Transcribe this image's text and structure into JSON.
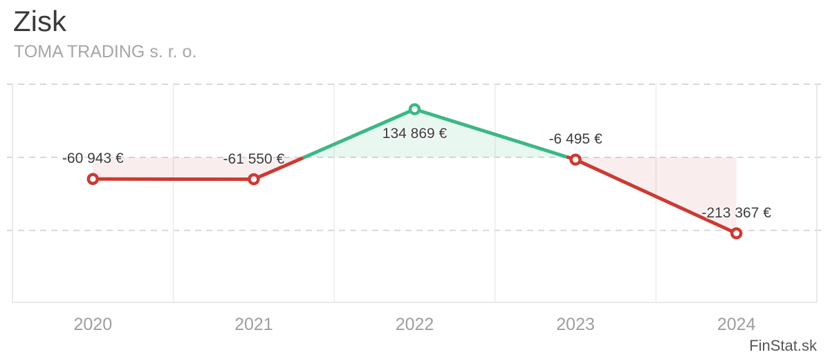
{
  "header": {
    "title": "Zisk",
    "subtitle": "TOMA TRADING s. r. o."
  },
  "footer": {
    "watermark": "FinStat.sk"
  },
  "chart_data": {
    "type": "line",
    "title": "Zisk",
    "subtitle": "TOMA TRADING s. r. o.",
    "categories": [
      "2020",
      "2021",
      "2022",
      "2023",
      "2024"
    ],
    "series": [
      {
        "name": "Zisk",
        "values": [
          -60943,
          -61550,
          134869,
          -6495,
          -213367
        ]
      }
    ],
    "point_labels": [
      "-60 943 €",
      "-61 550 €",
      "134 869 €",
      "-6 495 €",
      "-213 367 €"
    ],
    "label_positions": [
      "above",
      "above",
      "below",
      "above",
      "above"
    ],
    "xlabel": "",
    "ylabel": "",
    "ylim": [
      -407000,
      207000
    ],
    "grid": true,
    "legend_position": "none",
    "zero_baseline": 0,
    "colors": {
      "positive": "#3bb884",
      "negative": "#cb3a33",
      "positive_fill": "rgba(59,184,132,0.11)",
      "negative_fill": "rgba(203,59,52,0.09)",
      "marker_fill": "#ffffff"
    }
  }
}
